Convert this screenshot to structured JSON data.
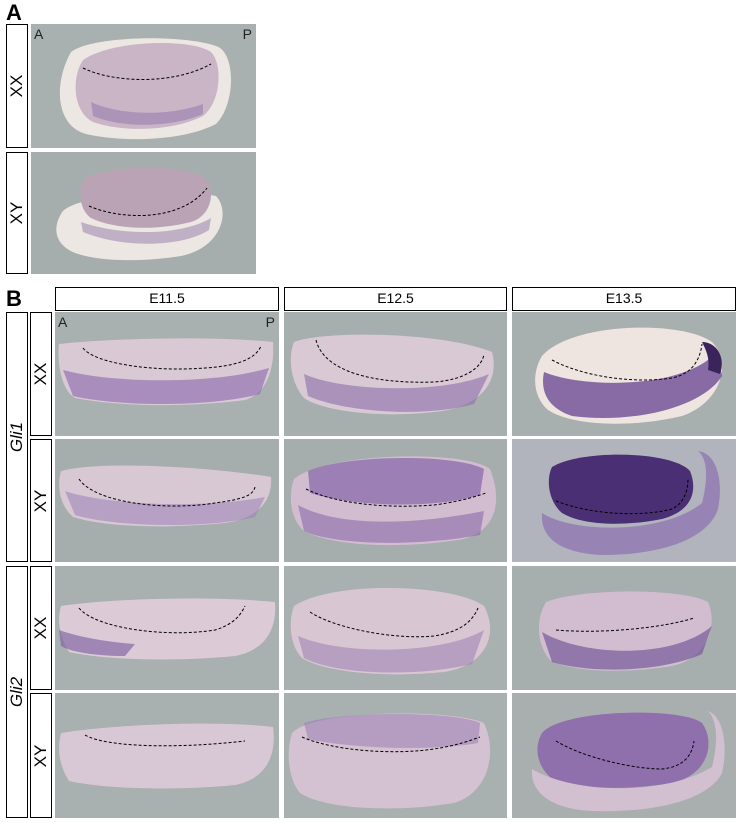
{
  "panels": {
    "a": {
      "letter": "A",
      "anterior": "A",
      "posterior": "P",
      "rows": [
        "XX",
        "XY"
      ]
    },
    "b": {
      "letter": "B",
      "anterior": "A",
      "posterior": "P",
      "columns": [
        "E11.5",
        "E12.5",
        "E13.5"
      ],
      "genes": [
        "Gli1",
        "Gli2"
      ],
      "rows": [
        "XX",
        "XY",
        "XX",
        "XY"
      ]
    }
  },
  "colors": {
    "background": "#a6adad",
    "tissue": "#d7c7d2",
    "stain": "#7a5a9c",
    "dark_stain": "#4d3070",
    "rim": "#ece6e2"
  }
}
